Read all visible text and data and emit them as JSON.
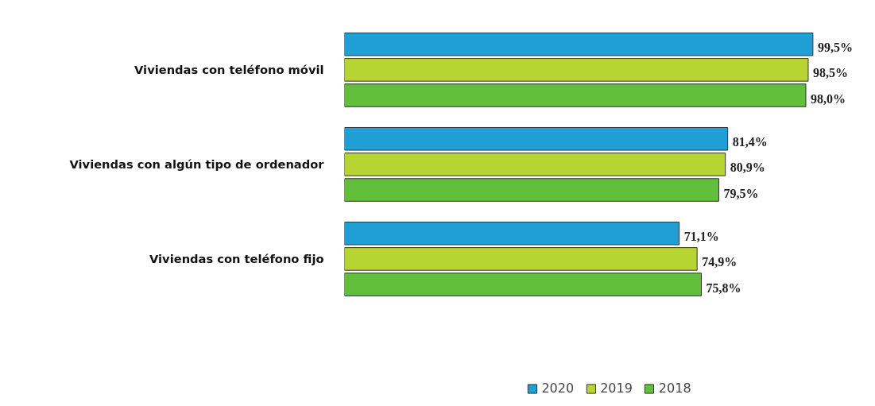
{
  "chart_data": {
    "type": "bar",
    "orientation": "horizontal",
    "categories": [
      "Viviendas con teléfono móvil",
      "Viviendas con algún tipo de ordenador",
      "Viviendas con teléfono fijo"
    ],
    "series": [
      {
        "name": "2020",
        "color": "#1f9fd4",
        "values": [
          99.5,
          81.4,
          71.1
        ],
        "value_labels": [
          "99,5%",
          "81,4%",
          "71,1%"
        ]
      },
      {
        "name": "2019",
        "color": "#b8d432",
        "values": [
          98.5,
          80.9,
          74.9
        ],
        "value_labels": [
          "98,5%",
          "80,9%",
          "74,9%"
        ]
      },
      {
        "name": "2018",
        "color": "#62bf3c",
        "values": [
          98.0,
          79.5,
          75.8
        ],
        "value_labels": [
          "98,0%",
          "79,5%",
          "75,8%"
        ]
      }
    ],
    "legend": "bottom",
    "grid": false,
    "tick_labels": "y"
  }
}
